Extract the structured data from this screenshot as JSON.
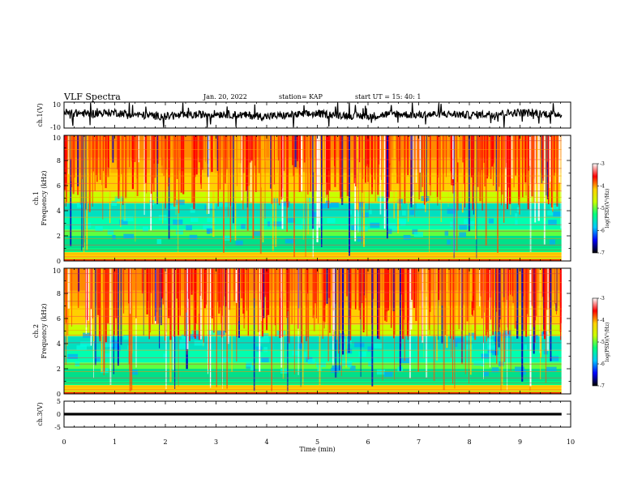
{
  "header": {
    "title": "VLF Spectra",
    "date": "Jan. 20, 2022",
    "station": "station= KAP",
    "start": "start  UT  =   15: 40: 1"
  },
  "colors": {
    "line": "#000000",
    "background": "#ffffff",
    "colormap": [
      "#000000",
      "#0000ff",
      "#00c8ff",
      "#00ff80",
      "#c8ff00",
      "#ffd000",
      "#ff0000",
      "#ffffff"
    ]
  },
  "chart_data": [
    {
      "type": "line",
      "panel": "ch1-waveform",
      "ylabel": "ch.1(V)",
      "ylim": [
        -10,
        10
      ],
      "yticks": [
        "10",
        "-10"
      ],
      "xlim": [
        0,
        10
      ],
      "x_end": 9.82,
      "x": [
        0,
        0.5,
        1,
        1.5,
        2,
        2.5,
        3,
        3.5,
        4,
        4.5,
        5,
        5.5,
        6,
        6.5,
        7,
        7.5,
        8,
        8.5,
        9,
        9.5,
        9.82
      ],
      "y": [
        2,
        1,
        2,
        0,
        -1,
        0,
        1,
        0,
        -1,
        0,
        1,
        0,
        -1,
        1,
        0,
        1,
        0,
        1,
        2,
        1,
        1
      ],
      "note": "noisy waveform trace"
    },
    {
      "type": "heatmap",
      "panel": "ch1-spectrogram",
      "ylabel": "ch.1\nFrequency (kHz)",
      "ylim": [
        0,
        10
      ],
      "yticks": [
        "0",
        "2",
        "4",
        "6",
        "8",
        "10"
      ],
      "xlim": [
        0,
        10
      ],
      "x_end": 9.82,
      "colorbar": {
        "label": "log(PSD)(V²/Hz)",
        "range": [
          -7,
          -3
        ],
        "ticks": [
          "-3",
          "-4",
          "-5",
          "-6",
          "-7"
        ]
      }
    },
    {
      "type": "heatmap",
      "panel": "ch2-spectrogram",
      "ylabel": "ch.2\nFrequency (kHz)",
      "ylim": [
        0,
        10
      ],
      "yticks": [
        "0",
        "2",
        "4",
        "6",
        "8",
        "10"
      ],
      "xlim": [
        0,
        10
      ],
      "x_end": 9.82,
      "colorbar": {
        "label": "log(PSD)(V²/Hz)",
        "range": [
          -7,
          -3
        ],
        "ticks": [
          "-3",
          "-4",
          "-5",
          "-6",
          "-7"
        ]
      }
    },
    {
      "type": "line",
      "panel": "ch3-waveform",
      "ylabel": "ch.3(V)",
      "ylim": [
        -5,
        5
      ],
      "yticks": [
        "5",
        "0",
        "-5"
      ],
      "xlim": [
        0,
        10
      ],
      "x_end": 9.82,
      "x": [
        0,
        9.82
      ],
      "y": [
        0,
        0
      ],
      "xlabel": "Time (min)",
      "xticks": [
        "0",
        "1",
        "2",
        "3",
        "4",
        "5",
        "6",
        "7",
        "8",
        "9",
        "10"
      ]
    }
  ]
}
